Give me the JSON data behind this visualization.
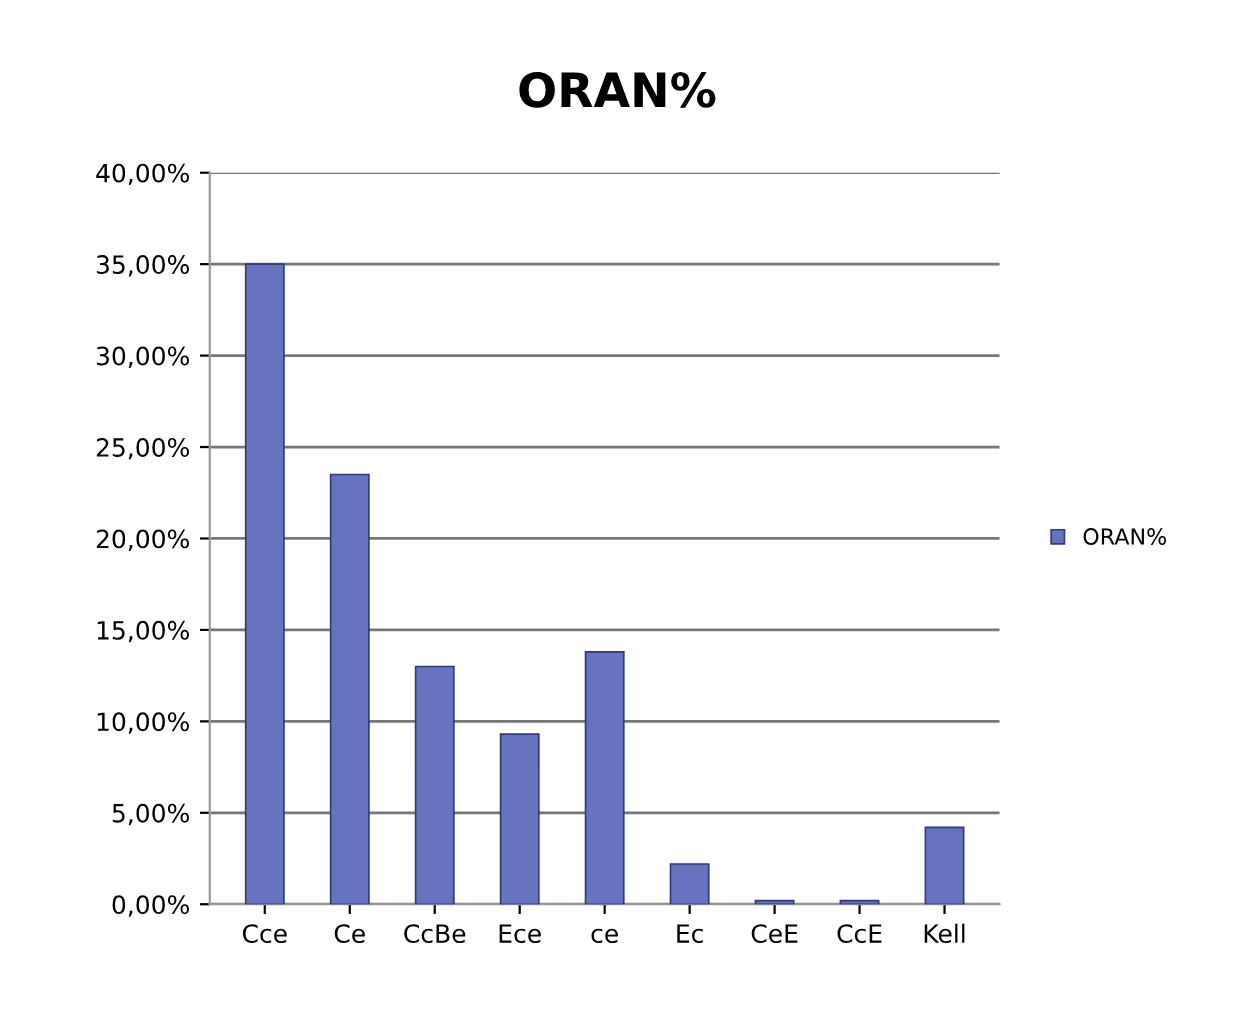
{
  "chart_data": {
    "type": "bar",
    "title": "ORAN%",
    "categories": [
      "Cce",
      "Ce",
      "CcBe",
      "Ece",
      "ce",
      "Ec",
      "CeE",
      "CcE",
      "Kell"
    ],
    "series": [
      {
        "name": "ORAN%",
        "color": "#6674c0",
        "values": [
          35,
          23.5,
          13,
          9.3,
          13.8,
          2.2,
          0.2,
          0.2,
          4.2
        ]
      }
    ],
    "ylim": [
      0,
      40
    ],
    "yticks": [
      {
        "value": 0,
        "label": "0,00%"
      },
      {
        "value": 5,
        "label": "5,00%"
      },
      {
        "value": 10,
        "label": "10,00%"
      },
      {
        "value": 15,
        "label": "15,00%"
      },
      {
        "value": 20,
        "label": "20,00%"
      },
      {
        "value": 25,
        "label": "25,00%"
      },
      {
        "value": 30,
        "label": "30,00%"
      },
      {
        "value": 35,
        "label": "35,00%"
      },
      {
        "value": 40,
        "label": "40,00%"
      }
    ],
    "grid": "y",
    "legend": "right"
  }
}
